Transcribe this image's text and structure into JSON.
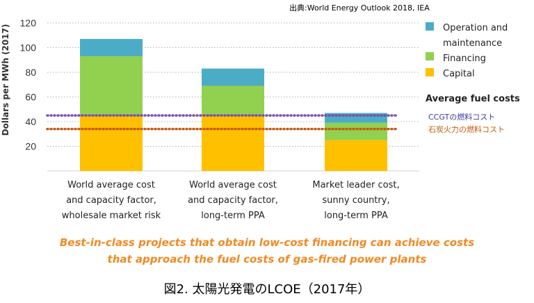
{
  "source_note": "出典:World Energy Outlook 2018, IEA",
  "caption": "図2. 太陽光発電のLCOE（2017年）",
  "note_lines": [
    "Best-in-class projects that obtain low-cost financing can achieve costs",
    "that approach the fuel costs of gas-fired power plants"
  ],
  "colors": {
    "capital": "#ffc000",
    "financing": "#92d050",
    "om": "#4bacc6",
    "ccgt_line": "#7f4fa8",
    "coal_line": "#c55a11",
    "ccgt_text": "#3b3b9a",
    "coal_text": "#c55a11",
    "note": "#f08a24"
  },
  "chart_data": {
    "type": "bar",
    "stacked": true,
    "ylabel": "Dollars per MWh (2017)",
    "ylim": [
      0,
      120
    ],
    "yticks": [
      20,
      40,
      60,
      80,
      100,
      120
    ],
    "grid": "horizontal dotted",
    "categories": [
      [
        "World average cost",
        "and capacity factor,",
        "wholesale market risk"
      ],
      [
        "World average cost",
        "and capacity factor,",
        "long-term PPA"
      ],
      [
        "Market leader cost,",
        "sunny country,",
        "long-term PPA"
      ]
    ],
    "series": [
      {
        "name": "Capital",
        "key": "capital",
        "values": [
          45,
          45,
          25
        ]
      },
      {
        "name": "Financing",
        "key": "financing",
        "values": [
          48,
          24,
          14
        ]
      },
      {
        "name": "Operation and maintenance",
        "key": "om",
        "values": [
          14,
          14,
          8
        ]
      }
    ],
    "legend_labels": [
      [
        "Operation and",
        "maintenance"
      ],
      [
        "Financing"
      ],
      [
        "Capital"
      ]
    ],
    "legend_title_fuel": "Average fuel costs",
    "reference_lines": [
      {
        "name": "CCGTの燃料コスト",
        "value": 45,
        "key": "ccgt"
      },
      {
        "name": "石炭火力の燃料コスト",
        "value": 34,
        "key": "coal"
      }
    ],
    "legend_position": "right"
  }
}
